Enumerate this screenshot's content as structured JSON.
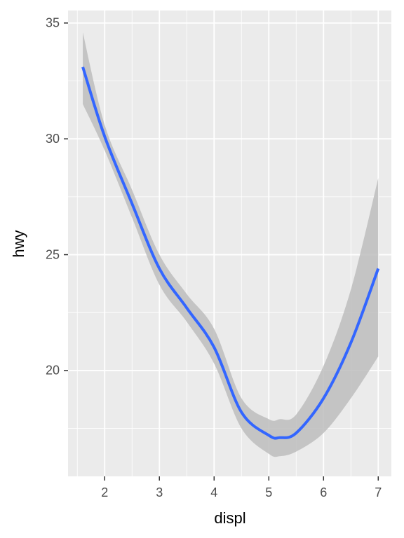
{
  "chart_data": {
    "type": "smooth",
    "x_label": "displ",
    "y_label": "hwy",
    "x": [
      1.6,
      2,
      2.5,
      3,
      3.5,
      4,
      4.5,
      5,
      5.2,
      5.5,
      6,
      6.5,
      7
    ],
    "series": [
      {
        "color": "#3366ff",
        "band_color": "#bdbdbd",
        "values": [
          33.1,
          30.1,
          27.2,
          24.4,
          22.7,
          21.0,
          18.2,
          17.2,
          17.1,
          17.3,
          18.8,
          21.2,
          24.4
        ],
        "lower": [
          31.5,
          29.5,
          26.6,
          23.7,
          22.1,
          20.3,
          17.5,
          16.4,
          16.3,
          16.5,
          17.3,
          18.8,
          20.6
        ],
        "upper": [
          34.6,
          30.6,
          27.8,
          25.0,
          23.3,
          21.8,
          18.8,
          17.9,
          17.9,
          18.1,
          20.2,
          23.5,
          28.3
        ]
      }
    ],
    "xlim": [
      1.33,
      7.24
    ],
    "ylim": [
      15.43,
      35.54
    ],
    "xticks": [
      2,
      3,
      4,
      5,
      6,
      7
    ],
    "yticks": [
      20,
      25,
      30,
      35
    ],
    "x_minor_ticks": [
      1.5,
      2.5,
      3.5,
      4.5,
      5.5,
      6.5
    ],
    "y_minor_ticks": [
      17.5,
      22.5,
      27.5,
      32.5
    ],
    "grid": true
  }
}
